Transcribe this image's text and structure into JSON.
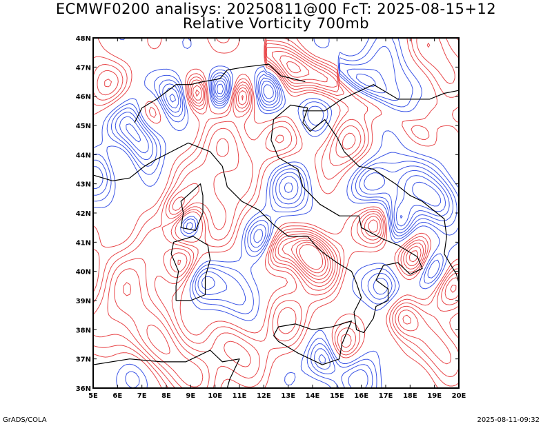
{
  "header": {
    "title_line1": "ECMWF0200 analisys: 20250811@00 FcT: 2025-08-15+12",
    "title_line2": "Relative Vorticity 700mb"
  },
  "map": {
    "lon_range": [
      5,
      20
    ],
    "lat_range": [
      36,
      48
    ],
    "x_tick_labels": [
      "5E",
      "6E",
      "7E",
      "8E",
      "9E",
      "10E",
      "11E",
      "12E",
      "13E",
      "14E",
      "15E",
      "16E",
      "17E",
      "18E",
      "19E",
      "20E"
    ],
    "y_tick_labels": [
      "36N",
      "37N",
      "38N",
      "39N",
      "40N",
      "41N",
      "42N",
      "43N",
      "44N",
      "45N",
      "46N",
      "47N",
      "48N"
    ],
    "colors": {
      "positive_vorticity": "#e8474a",
      "negative_vorticity": "#3b55e6",
      "coastline": "#000000",
      "frame": "#000000"
    }
  },
  "footer": {
    "left": "GrADS/COLA",
    "right": "2025-08-11-09:32"
  }
}
